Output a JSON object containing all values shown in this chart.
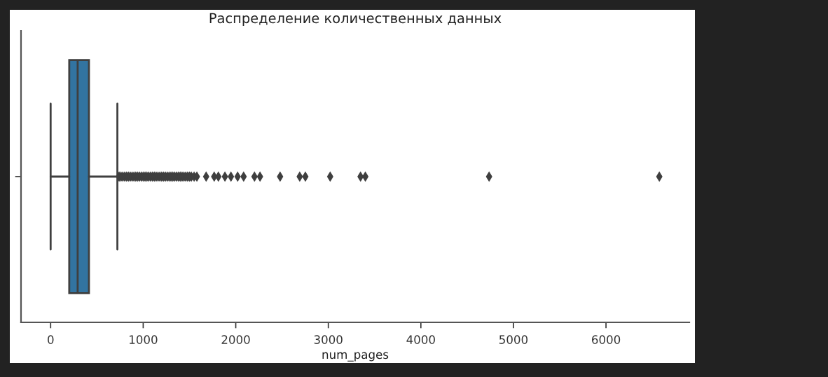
{
  "chart_data": {
    "type": "box",
    "title": "Распределение количественных данных",
    "xlabel": "num_pages",
    "orientation": "horizontal",
    "categories": [
      null
    ],
    "color": "#3274a1",
    "boxes": [
      {
        "low": 0,
        "q1": 201,
        "median": 292,
        "q3": 414,
        "high": 721,
        "outliers": [
          740,
          760,
          780,
          800,
          820,
          840,
          860,
          880,
          900,
          920,
          940,
          960,
          980,
          1000,
          1020,
          1040,
          1060,
          1080,
          1100,
          1120,
          1140,
          1160,
          1180,
          1200,
          1220,
          1240,
          1260,
          1280,
          1300,
          1320,
          1340,
          1360,
          1380,
          1400,
          1420,
          1440,
          1460,
          1480,
          1500,
          1520,
          1550,
          1580,
          1680,
          1767,
          1812,
          1883,
          1948,
          2020,
          2085,
          2202,
          2262,
          2479,
          2691,
          2752,
          3020,
          3348,
          3400,
          4737,
          6576
        ]
      }
    ],
    "xlim": [
      -320,
      6900
    ],
    "xticks": [
      0,
      1000,
      2000,
      3000,
      4000,
      5000,
      6000
    ]
  }
}
